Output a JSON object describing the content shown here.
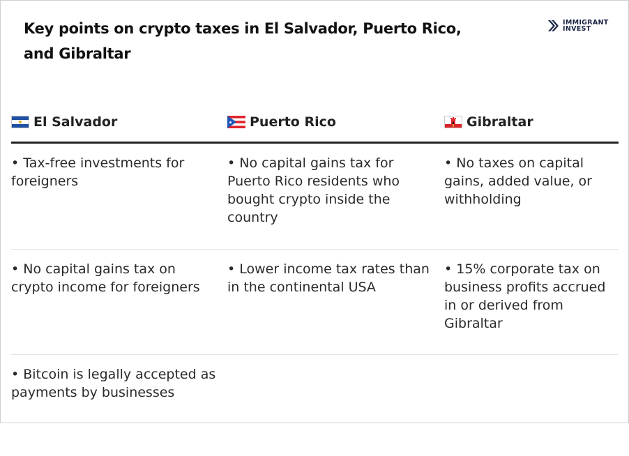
{
  "title": "Key points on crypto taxes in El Salvador, Puerto Rico, and Gibraltar",
  "logo": {
    "line1": "IMMIGRANT",
    "line2": "INVEST",
    "icon": "double-chevron-logo-icon",
    "color": "#1b2446"
  },
  "columns": [
    {
      "label": "El Salvador",
      "flag": "el-salvador-flag-icon"
    },
    {
      "label": "Puerto Rico",
      "flag": "puerto-rico-flag-icon"
    },
    {
      "label": "Gibraltar",
      "flag": "gibraltar-flag-icon"
    }
  ],
  "rows": [
    [
      "• Tax-free investments for foreigners",
      "• No capital gains tax for Puerto Rico residents who bought crypto inside the country",
      "• No taxes on capital gains, added value, or withholding"
    ],
    [
      "• No capital gains tax on crypto income for foreigners",
      "• Lower income tax rates than in the continental USA",
      "• 15% corporate tax on business profits accrued in or derived from Gibraltar"
    ],
    [
      "• Bitcoin is legally accepted as payments by businesses",
      "",
      ""
    ]
  ],
  "colors": {
    "header_rule": "#222222",
    "row_divider": "#e4e4e4",
    "text": "#2a2a2a"
  }
}
